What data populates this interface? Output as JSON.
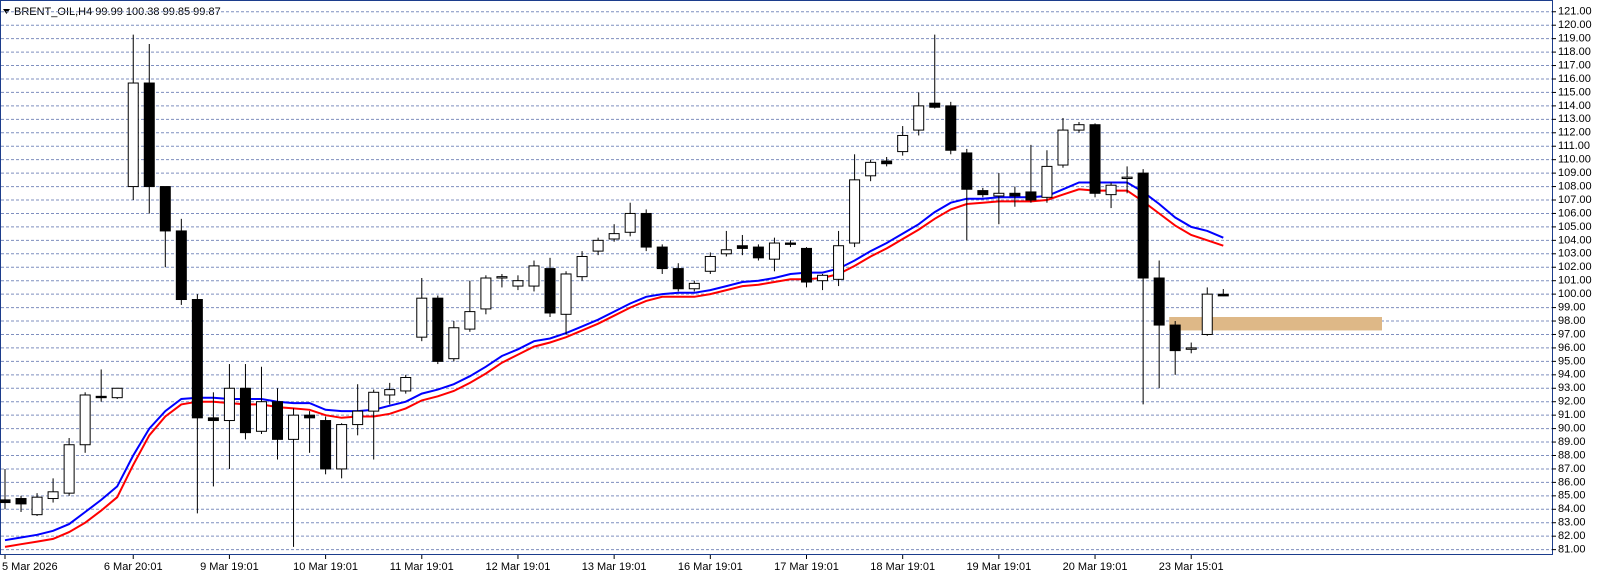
{
  "chart_data": {
    "type": "candlestick",
    "title": "BRENT_OIL,H4  99.99 100.38 99.85 99.87",
    "categories": [
      "5 Mar 2026",
      null,
      null,
      null,
      null,
      null,
      null,
      null,
      "6 Mar 20:01",
      null,
      null,
      null,
      null,
      null,
      "9 Mar 19:01",
      null,
      null,
      null,
      null,
      null,
      "10 Mar 19:01",
      null,
      null,
      null,
      null,
      null,
      "11 Mar 19:01",
      null,
      null,
      null,
      null,
      null,
      "12 Mar 19:01",
      null,
      null,
      null,
      null,
      null,
      "13 Mar 19:01",
      null,
      null,
      null,
      null,
      null,
      "16 Mar 19:01",
      null,
      null,
      null,
      null,
      null,
      "17 Mar 19:01",
      null,
      null,
      null,
      null,
      null,
      "18 Mar 19:01",
      null,
      null,
      null,
      null,
      null,
      "19 Mar 19:01",
      null,
      null,
      null,
      null,
      null,
      "20 Mar 19:01",
      null,
      null,
      null,
      null,
      null,
      "23 Mar 15:01",
      null,
      null
    ],
    "open": [
      84.7,
      84.8,
      83.6,
      84.8,
      85.2,
      88.8,
      92.4,
      92.3,
      108.0,
      115.7,
      108.0,
      104.7,
      99.6,
      90.8,
      90.6,
      93.0,
      89.8,
      92.0,
      89.2,
      91.0,
      90.6,
      87.0,
      90.3,
      91.3,
      92.5,
      92.8,
      96.8,
      99.7,
      95.2,
      97.4,
      98.9,
      101.2,
      100.6,
      100.6,
      101.9,
      98.5,
      101.3,
      103.2,
      104.1,
      104.6,
      106.0,
      103.5,
      101.9,
      100.4,
      101.7,
      103.0,
      103.6,
      103.5,
      102.6,
      103.8,
      103.4,
      101.0,
      101.1,
      103.8,
      108.8,
      109.9,
      110.6,
      112.2,
      114.2,
      114.0,
      110.5,
      107.7,
      107.3,
      107.5,
      107.6,
      107.2,
      109.6,
      112.2,
      112.6,
      107.4,
      108.6,
      109.0,
      101.2,
      97.7,
      95.9,
      97.0,
      99.99
    ],
    "high": [
      87.0,
      85.0,
      85.2,
      86.3,
      89.3,
      92.7,
      94.4,
      93.0,
      119.3,
      118.6,
      108.0,
      105.6,
      100.0,
      92.7,
      94.8,
      94.8,
      94.6,
      93.0,
      91.5,
      91.3,
      90.9,
      90.4,
      93.3,
      92.9,
      93.4,
      94.0,
      101.2,
      99.9,
      98.0,
      101.0,
      101.4,
      101.5,
      101.4,
      102.5,
      102.7,
      101.7,
      103.2,
      104.2,
      105.2,
      106.8,
      106.3,
      103.7,
      102.3,
      101.0,
      103.1,
      104.7,
      104.4,
      103.7,
      104.2,
      104.0,
      103.5,
      101.5,
      104.7,
      110.4,
      110.0,
      110.2,
      112.5,
      115.0,
      119.3,
      114.3,
      110.8,
      107.9,
      109.0,
      108.0,
      111.1,
      110.7,
      113.1,
      112.8,
      112.7,
      108.3,
      109.5,
      109.3,
      102.5,
      98.0,
      96.4,
      100.5,
      100.38
    ],
    "low": [
      84.0,
      83.8,
      83.5,
      84.5,
      85.0,
      88.2,
      92.0,
      92.2,
      107.0,
      106.0,
      102.0,
      99.2,
      83.7,
      85.7,
      87.0,
      89.2,
      89.6,
      87.7,
      81.2,
      88.2,
      86.6,
      86.3,
      89.5,
      87.7,
      91.8,
      92.6,
      96.5,
      94.8,
      95.0,
      97.2,
      98.5,
      100.5,
      100.3,
      100.2,
      98.3,
      97.0,
      101.0,
      102.9,
      103.9,
      104.3,
      103.2,
      101.5,
      100.2,
      100.2,
      101.5,
      102.8,
      102.9,
      102.5,
      101.7,
      103.5,
      100.5,
      100.3,
      100.6,
      103.5,
      108.4,
      109.5,
      110.3,
      111.8,
      113.8,
      110.4,
      104.0,
      107.2,
      105.2,
      106.5,
      106.8,
      106.8,
      109.4,
      112.0,
      107.2,
      106.4,
      107.5,
      91.8,
      93.0,
      94.0,
      95.6,
      96.9,
      99.85
    ],
    "close": [
      84.5,
      84.4,
      84.9,
      85.3,
      88.8,
      92.5,
      92.3,
      93.0,
      115.7,
      108.0,
      104.7,
      99.6,
      90.8,
      90.6,
      93.0,
      89.7,
      92.0,
      89.2,
      91.0,
      90.8,
      87.0,
      90.3,
      91.3,
      92.7,
      92.9,
      93.8,
      99.7,
      95.0,
      97.5,
      98.7,
      101.2,
      101.3,
      101.0,
      102.1,
      98.6,
      101.5,
      102.8,
      104.0,
      104.5,
      106.0,
      103.5,
      101.9,
      100.4,
      100.8,
      102.8,
      103.3,
      103.4,
      102.7,
      103.8,
      103.7,
      100.9,
      101.4,
      103.6,
      108.5,
      109.8,
      109.7,
      111.8,
      114.0,
      113.9,
      110.7,
      107.8,
      107.4,
      107.5,
      107.3,
      107.0,
      109.5,
      112.2,
      112.6,
      107.5,
      108.1,
      108.7,
      101.2,
      97.7,
      95.8,
      96.0,
      100.0,
      99.87
    ],
    "lines": [
      {
        "color": "#0000ff",
        "values": [
          81.7,
          81.9,
          82.1,
          82.4,
          82.9,
          83.8,
          84.7,
          85.7,
          88.0,
          90.0,
          91.3,
          92.2,
          92.3,
          92.3,
          92.2,
          92.2,
          92.2,
          92.0,
          91.9,
          91.9,
          91.4,
          91.3,
          91.3,
          91.4,
          91.7,
          92.0,
          92.6,
          92.9,
          93.3,
          93.9,
          94.6,
          95.4,
          95.9,
          96.5,
          96.7,
          97.1,
          97.6,
          98.1,
          98.7,
          99.3,
          99.8,
          100.0,
          100.1,
          100.1,
          100.3,
          100.6,
          100.9,
          101.0,
          101.2,
          101.5,
          101.6,
          101.6,
          101.9,
          102.5,
          103.2,
          103.8,
          104.5,
          105.2,
          106.1,
          106.8,
          107.1,
          107.1,
          107.2,
          107.2,
          107.2,
          107.3,
          107.8,
          108.3,
          108.3,
          108.3,
          108.3,
          107.6,
          106.7,
          105.7,
          105.0,
          104.7,
          104.2
        ]
      },
      {
        "color": "#ff0000",
        "values": [
          81.2,
          81.4,
          81.6,
          81.8,
          82.3,
          83.0,
          83.9,
          84.9,
          87.3,
          89.5,
          90.9,
          91.8,
          92.0,
          92.0,
          91.9,
          91.8,
          91.8,
          91.6,
          91.5,
          91.4,
          91.0,
          90.8,
          90.9,
          90.9,
          91.1,
          91.5,
          92.1,
          92.4,
          92.8,
          93.4,
          94.1,
          94.9,
          95.5,
          96.1,
          96.4,
          96.8,
          97.3,
          97.8,
          98.4,
          99.0,
          99.5,
          99.8,
          99.8,
          99.8,
          100.0,
          100.3,
          100.6,
          100.7,
          100.9,
          101.1,
          101.1,
          101.2,
          101.5,
          102.1,
          102.8,
          103.4,
          104.1,
          104.8,
          105.6,
          106.3,
          106.7,
          106.8,
          106.9,
          106.9,
          106.9,
          107.0,
          107.4,
          107.8,
          107.7,
          107.7,
          107.7,
          106.9,
          106.0,
          105.1,
          104.4,
          104.0,
          103.6
        ]
      }
    ],
    "zone": {
      "low": 97.3,
      "high": 98.3,
      "color": "#deb887"
    },
    "up_color": "#ffffff",
    "down_color": "#000000",
    "grid": true,
    "ylim": [
      80.6,
      121.8
    ],
    "yticks": [
      {
        "value": 81,
        "label": "81.00"
      },
      {
        "value": 82,
        "label": "82.00"
      },
      {
        "value": 83,
        "label": "83.00"
      },
      {
        "value": 84,
        "label": "84.00"
      },
      {
        "value": 85,
        "label": "85.00"
      },
      {
        "value": 86,
        "label": "86.00"
      },
      {
        "value": 87,
        "label": "87.00"
      },
      {
        "value": 88,
        "label": "88.00"
      },
      {
        "value": 89,
        "label": "89.00"
      },
      {
        "value": 90,
        "label": "90.00"
      },
      {
        "value": 91,
        "label": "91.00"
      },
      {
        "value": 92,
        "label": "92.00"
      },
      {
        "value": 93,
        "label": "93.00"
      },
      {
        "value": 94,
        "label": "94.00"
      },
      {
        "value": 95,
        "label": "95.00"
      },
      {
        "value": 96,
        "label": "96.00"
      },
      {
        "value": 97,
        "label": "97.00"
      },
      {
        "value": 98,
        "label": "98.00"
      },
      {
        "value": 99,
        "label": "99.00"
      },
      {
        "value": 100,
        "label": "100.00"
      },
      {
        "value": 101,
        "label": "101.00"
      },
      {
        "value": 102,
        "label": "102.00"
      },
      {
        "value": 103,
        "label": "103.00"
      },
      {
        "value": 104,
        "label": "104.00"
      },
      {
        "value": 105,
        "label": "105.00"
      },
      {
        "value": 106,
        "label": "106.00"
      },
      {
        "value": 107,
        "label": "107.00"
      },
      {
        "value": 108,
        "label": "108.00"
      },
      {
        "value": 109,
        "label": "109.00"
      },
      {
        "value": 110,
        "label": "110.00"
      },
      {
        "value": 111,
        "label": "111.00"
      },
      {
        "value": 112,
        "label": "112.00"
      },
      {
        "value": 113,
        "label": "113.00"
      },
      {
        "value": 114,
        "label": "114.00"
      },
      {
        "value": 115,
        "label": "115.00"
      },
      {
        "value": 116,
        "label": "116.00"
      },
      {
        "value": 117,
        "label": "117.00"
      },
      {
        "value": 118,
        "label": "118.00"
      },
      {
        "value": 119,
        "label": "119.00"
      },
      {
        "value": 120,
        "label": "120.00"
      },
      {
        "value": 121,
        "label": "121.00"
      }
    ]
  }
}
